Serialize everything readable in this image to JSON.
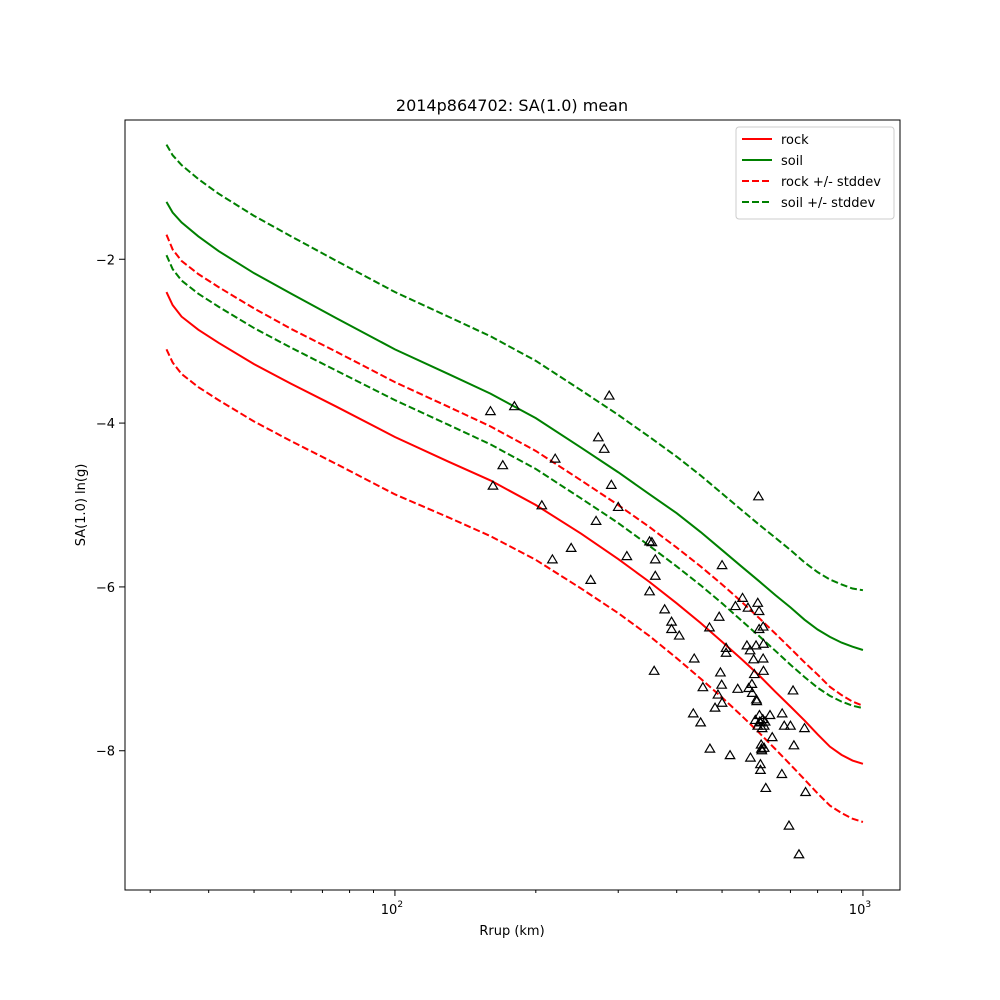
{
  "chart_data": {
    "type": "line",
    "title": "2014p864702: SA(1.0) mean",
    "xlabel": "Rrup (km)",
    "ylabel": "SA(1.0) ln(g)",
    "xscale": "log",
    "xlim": [
      26.5,
      1200
    ],
    "ylim": [
      -9.7,
      -0.3
    ],
    "xtick_labels": [
      {
        "value": 100,
        "base": "10",
        "exp": "2"
      },
      {
        "value": 1000,
        "base": "10",
        "exp": "3"
      }
    ],
    "yticks": [
      {
        "value": -2,
        "label": "−2"
      },
      {
        "value": -4,
        "label": "−4"
      },
      {
        "value": -6,
        "label": "−6"
      },
      {
        "value": -8,
        "label": "−8"
      }
    ],
    "grid": false,
    "legend_position": "top-right",
    "x": [
      32.5,
      33.5,
      35,
      38,
      42,
      50,
      60,
      75,
      100,
      130,
      160,
      200,
      250,
      300,
      350,
      400,
      450,
      500,
      550,
      600,
      650,
      700,
      750,
      800,
      850,
      900,
      950,
      1000
    ],
    "series": [
      {
        "name": "rock",
        "style": "solid",
        "color": "#ff0000",
        "values": [
          -2.4,
          -2.56,
          -2.7,
          -2.86,
          -3.02,
          -3.28,
          -3.52,
          -3.8,
          -4.17,
          -4.47,
          -4.7,
          -5.0,
          -5.35,
          -5.66,
          -5.94,
          -6.2,
          -6.44,
          -6.67,
          -6.88,
          -7.08,
          -7.28,
          -7.46,
          -7.63,
          -7.8,
          -7.95,
          -8.05,
          -8.12,
          -8.16
        ]
      },
      {
        "name": "soil",
        "style": "solid",
        "color": "#008000",
        "values": [
          -1.3,
          -1.43,
          -1.55,
          -1.72,
          -1.9,
          -2.17,
          -2.42,
          -2.72,
          -3.1,
          -3.4,
          -3.64,
          -3.94,
          -4.3,
          -4.6,
          -4.87,
          -5.1,
          -5.33,
          -5.55,
          -5.75,
          -5.93,
          -6.1,
          -6.25,
          -6.4,
          -6.52,
          -6.61,
          -6.68,
          -6.73,
          -6.77
        ]
      },
      {
        "name": "rock +/- stddev",
        "style": "dashed",
        "color": "#ff0000",
        "values": [
          -1.7,
          -1.88,
          -2.02,
          -2.18,
          -2.34,
          -2.6,
          -2.85,
          -3.13,
          -3.5,
          -3.8,
          -4.04,
          -4.34,
          -4.7,
          -5.0,
          -5.27,
          -5.52,
          -5.75,
          -5.97,
          -6.18,
          -6.38,
          -6.57,
          -6.75,
          -6.92,
          -7.07,
          -7.22,
          -7.32,
          -7.4,
          -7.45
        ]
      },
      {
        "name": "rock +/- stddev",
        "style": "dashed",
        "color": "#ff0000",
        "legend": false,
        "values": [
          -3.1,
          -3.26,
          -3.4,
          -3.56,
          -3.72,
          -3.98,
          -4.22,
          -4.5,
          -4.87,
          -5.15,
          -5.38,
          -5.67,
          -6.02,
          -6.32,
          -6.6,
          -6.87,
          -7.12,
          -7.35,
          -7.57,
          -7.78,
          -7.98,
          -8.17,
          -8.35,
          -8.52,
          -8.67,
          -8.76,
          -8.83,
          -8.87
        ]
      },
      {
        "name": "soil +/- stddev",
        "style": "dashed",
        "color": "#008000",
        "values": [
          -0.6,
          -0.73,
          -0.85,
          -1.02,
          -1.2,
          -1.47,
          -1.72,
          -2.02,
          -2.4,
          -2.7,
          -2.94,
          -3.24,
          -3.6,
          -3.9,
          -4.17,
          -4.41,
          -4.64,
          -4.86,
          -5.06,
          -5.24,
          -5.4,
          -5.55,
          -5.7,
          -5.82,
          -5.91,
          -5.97,
          -6.02,
          -6.04
        ]
      },
      {
        "name": "soil +/- stddev",
        "style": "dashed",
        "color": "#008000",
        "legend": false,
        "values": [
          -1.95,
          -2.12,
          -2.26,
          -2.42,
          -2.58,
          -2.84,
          -3.08,
          -3.36,
          -3.72,
          -4.02,
          -4.26,
          -4.56,
          -4.92,
          -5.22,
          -5.5,
          -5.75,
          -5.98,
          -6.2,
          -6.41,
          -6.6,
          -6.78,
          -6.95,
          -7.1,
          -7.23,
          -7.33,
          -7.4,
          -7.45,
          -7.48
        ]
      }
    ],
    "observations": {
      "marker": "triangle",
      "color": "#000000",
      "points": [
        [
          160,
          -3.86
        ],
        [
          180,
          -3.8
        ],
        [
          162,
          -4.77
        ],
        [
          170,
          -4.52
        ],
        [
          206,
          -5.01
        ],
        [
          220,
          -4.44
        ],
        [
          217,
          -5.67
        ],
        [
          238,
          -5.53
        ],
        [
          262,
          -5.92
        ],
        [
          269,
          -5.2
        ],
        [
          272,
          -4.18
        ],
        [
          280,
          -4.32
        ],
        [
          287,
          -3.67
        ],
        [
          290,
          -4.76
        ],
        [
          300,
          -5.03
        ],
        [
          313,
          -5.63
        ],
        [
          350,
          -6.06
        ],
        [
          350,
          -5.45
        ],
        [
          354,
          -5.46
        ],
        [
          360,
          -5.67
        ],
        [
          360,
          -5.87
        ],
        [
          358,
          -7.03
        ],
        [
          377,
          -6.28
        ],
        [
          390,
          -6.43
        ],
        [
          390,
          -6.52
        ],
        [
          405,
          -6.6
        ],
        [
          436,
          -6.88
        ],
        [
          434,
          -7.55
        ],
        [
          455,
          -7.23
        ],
        [
          450,
          -7.66
        ],
        [
          470,
          -6.5
        ],
        [
          471,
          -7.98
        ],
        [
          483,
          -7.48
        ],
        [
          490,
          -7.32
        ],
        [
          493,
          -6.37
        ],
        [
          496,
          -7.05
        ],
        [
          499,
          -7.2
        ],
        [
          500,
          -7.42
        ],
        [
          500,
          -5.74
        ],
        [
          510,
          -6.75
        ],
        [
          510,
          -6.81
        ],
        [
          520,
          -8.06
        ],
        [
          534,
          -6.24
        ],
        [
          540,
          -7.25
        ],
        [
          553,
          -6.14
        ],
        [
          565,
          -6.72
        ],
        [
          568,
          -6.26
        ],
        [
          570,
          -7.24
        ],
        [
          574,
          -6.78
        ],
        [
          575,
          -8.09
        ],
        [
          579,
          -7.19
        ],
        [
          580,
          -7.3
        ],
        [
          584,
          -6.89
        ],
        [
          586,
          -7.07
        ],
        [
          589,
          -7.63
        ],
        [
          591,
          -6.72
        ],
        [
          592,
          -7.38
        ],
        [
          593,
          -7.4
        ],
        [
          596,
          -7.7
        ],
        [
          596,
          -6.2
        ],
        [
          598,
          -4.9
        ],
        [
          600,
          -6.52
        ],
        [
          600,
          -6.3
        ],
        [
          601,
          -7.57
        ],
        [
          602,
          -7.65
        ],
        [
          604,
          -7.66
        ],
        [
          604,
          -8.17
        ],
        [
          604,
          -8.24
        ],
        [
          606,
          -7.93
        ],
        [
          607,
          -7.98
        ],
        [
          608,
          -8.0
        ],
        [
          609,
          -7.73
        ],
        [
          611,
          -7.62
        ],
        [
          612,
          -6.49
        ],
        [
          612,
          -6.88
        ],
        [
          613,
          -7.03
        ],
        [
          613,
          -6.7
        ],
        [
          615,
          -7.7
        ],
        [
          615,
          -7.97
        ],
        [
          618,
          -7.65
        ],
        [
          620,
          -8.46
        ],
        [
          633,
          -7.57
        ],
        [
          640,
          -7.84
        ],
        [
          671,
          -8.29
        ],
        [
          672,
          -7.55
        ],
        [
          679,
          -7.7
        ],
        [
          695,
          -8.92
        ],
        [
          700,
          -7.7
        ],
        [
          709,
          -7.27
        ],
        [
          712,
          -7.94
        ],
        [
          730,
          -9.27
        ],
        [
          754,
          -8.51
        ],
        [
          750,
          -7.73
        ]
      ]
    }
  },
  "legend": {
    "entries": [
      {
        "label": "rock",
        "color": "#ff0000",
        "style": "solid"
      },
      {
        "label": "soil",
        "color": "#008000",
        "style": "solid"
      },
      {
        "label": "rock +/- stddev",
        "color": "#ff0000",
        "style": "dashed"
      },
      {
        "label": "soil +/- stddev",
        "color": "#008000",
        "style": "dashed"
      }
    ]
  }
}
